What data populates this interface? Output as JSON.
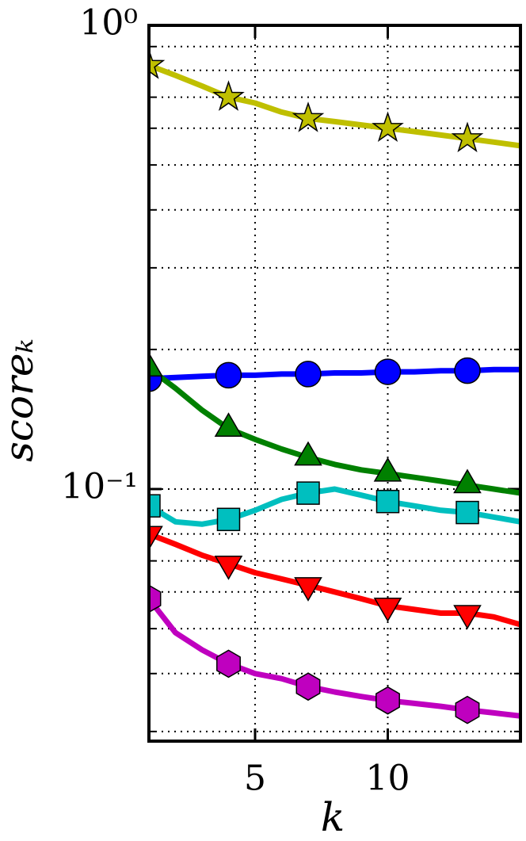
{
  "chart_data": {
    "type": "line",
    "x_label": "k",
    "y_label": "scoreₖ",
    "x": [
      1,
      2,
      3,
      4,
      5,
      6,
      7,
      8,
      9,
      10,
      11,
      12,
      13,
      14,
      15
    ],
    "xlim": [
      1,
      15
    ],
    "xticks": [
      5,
      10
    ],
    "ylim": [
      0.0286,
      1
    ],
    "yscale": "log",
    "yticks": [
      {
        "value": 1,
        "label": "10⁰"
      },
      {
        "value": 0.1,
        "label": "10⁻¹"
      }
    ],
    "yminorticks": [
      0.03,
      0.04,
      0.05,
      0.06,
      0.07,
      0.08,
      0.09,
      0.2,
      0.3,
      0.4,
      0.5,
      0.6,
      0.7,
      0.8,
      0.9
    ],
    "grid": true,
    "marker_every": 3,
    "series": [
      {
        "color": "#bfbf00",
        "marker": "star",
        "values": [
          0.82,
          0.78,
          0.74,
          0.7,
          0.68,
          0.65,
          0.63,
          0.62,
          0.61,
          0.6,
          0.59,
          0.58,
          0.57,
          0.56,
          0.55
        ]
      },
      {
        "color": "#0000ff",
        "marker": "circle",
        "values": [
          0.173,
          0.174,
          0.175,
          0.176,
          0.176,
          0.177,
          0.177,
          0.178,
          0.178,
          0.179,
          0.179,
          0.18,
          0.18,
          0.181,
          0.181
        ]
      },
      {
        "color": "#008000",
        "marker": "triangle",
        "values": [
          0.182,
          0.165,
          0.148,
          0.135,
          0.128,
          0.122,
          0.117,
          0.113,
          0.11,
          0.108,
          0.106,
          0.104,
          0.102,
          0.1,
          0.098
        ]
      },
      {
        "color": "#00bfbf",
        "marker": "square",
        "values": [
          0.092,
          0.085,
          0.084,
          0.086,
          0.09,
          0.095,
          0.098,
          0.1,
          0.097,
          0.094,
          0.092,
          0.09,
          0.089,
          0.087,
          0.085
        ]
      },
      {
        "color": "#ff0000",
        "marker": "triangle-down",
        "values": [
          0.08,
          0.076,
          0.072,
          0.069,
          0.066,
          0.064,
          0.062,
          0.06,
          0.058,
          0.056,
          0.055,
          0.054,
          0.054,
          0.053,
          0.051
        ]
      },
      {
        "color": "#bf00bf",
        "marker": "hexagon",
        "values": [
          0.058,
          0.049,
          0.045,
          0.042,
          0.04,
          0.039,
          0.0375,
          0.0365,
          0.0357,
          0.035,
          0.0345,
          0.034,
          0.0334,
          0.0329,
          0.0324
        ]
      }
    ]
  }
}
